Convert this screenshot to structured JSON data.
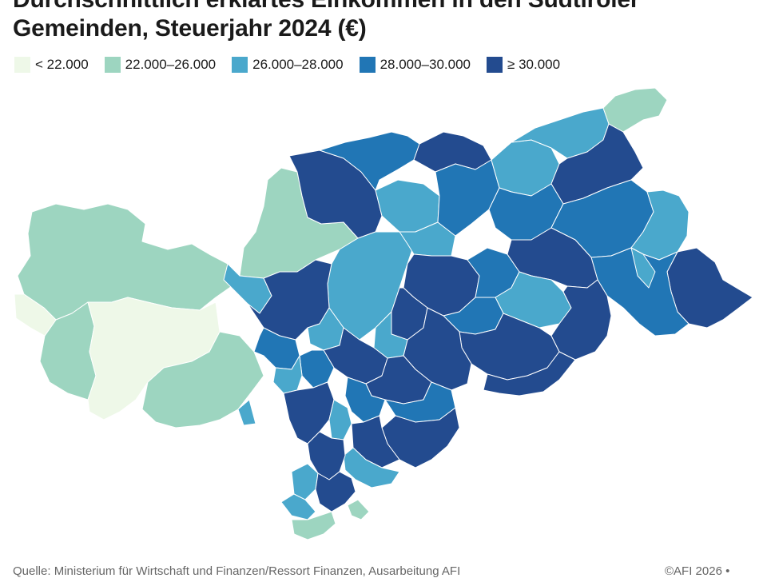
{
  "header": {
    "title_line1": "Durchschnittlich erklärtes Einkommen in den Südtiroler",
    "title_line2": "Gemeinden, Steuerjahr 2024 (€)"
  },
  "legend": {
    "items": [
      {
        "label": "< 22.000",
        "color": "#eef8e8"
      },
      {
        "label": "22.000–26.000",
        "color": "#9dd5c0"
      },
      {
        "label": "26.000–28.000",
        "color": "#4aa8cc"
      },
      {
        "label": "28.000–30.000",
        "color": "#2176b5"
      },
      {
        "label": "≥ 30.000",
        "color": "#234b8f"
      }
    ]
  },
  "footer": {
    "source": "Quelle: Ministerium für Wirtschaft und Finanzen/Ressort Finanzen, Ausarbeitung AFI",
    "credit": "©AFI 2026 •"
  }
}
